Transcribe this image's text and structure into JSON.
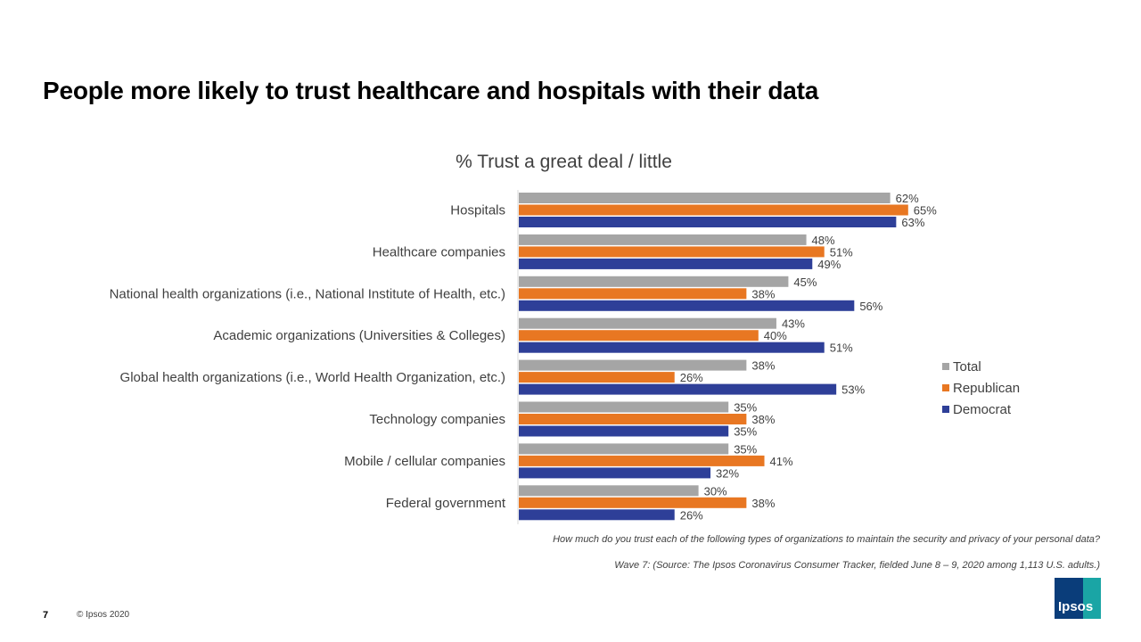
{
  "slide": {
    "title": "People more likely to trust healthcare and hospitals with their data",
    "page_number": "7",
    "copyright": "© Ipsos 2020",
    "logo_text": "Ipsos"
  },
  "footnotes": {
    "question": "How much do you trust each of the following  types of organizations to maintain the security and privacy of your personal data?",
    "source": "Wave 7: (Source:  The  Ipsos Coronavirus  Consumer  Tracker, fielded June 8 – 9, 2020 among 1,113 U.S. adults.)"
  },
  "chart_data": {
    "type": "bar",
    "orientation": "horizontal",
    "title": "% Trust a great deal / little",
    "categories": [
      "Hospitals",
      "Healthcare companies",
      "National health organizations (i.e., National Institute of Health, etc.)",
      "Academic organizations (Universities & Colleges)",
      "Global health organizations (i.e., World Health Organization, etc.)",
      "Technology companies",
      "Mobile / cellular companies",
      "Federal government"
    ],
    "series": [
      {
        "name": "Total",
        "color": "#a5a5a5",
        "values": [
          62,
          48,
          45,
          43,
          38,
          35,
          35,
          30
        ]
      },
      {
        "name": "Republican",
        "color": "#e87722",
        "values": [
          65,
          51,
          38,
          40,
          26,
          38,
          41,
          38
        ]
      },
      {
        "name": "Democrat",
        "color": "#2e3f98",
        "values": [
          63,
          49,
          56,
          51,
          53,
          35,
          32,
          26
        ]
      }
    ],
    "value_suffix": "%",
    "xlim": [
      0,
      70
    ],
    "grid": false,
    "legend_position": "right"
  }
}
